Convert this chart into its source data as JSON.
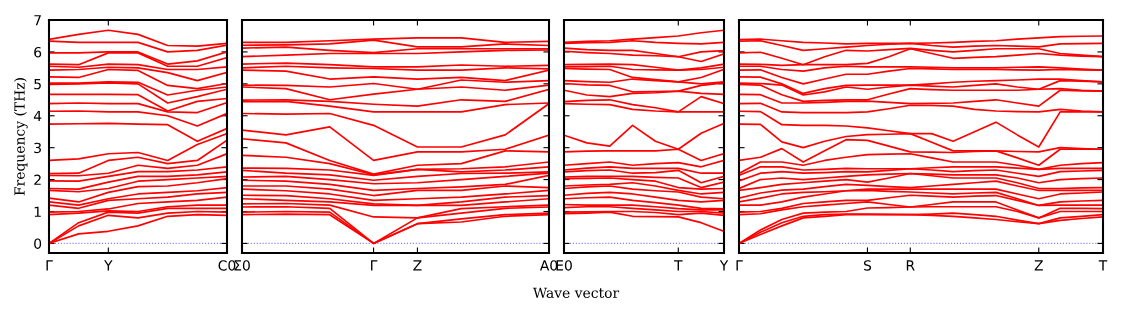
{
  "chart_data": [
    {
      "type": "line",
      "ylabel": "Frequency (THz)",
      "categories": [
        "Γ",
        null,
        "Y",
        null,
        null,
        null,
        "C0"
      ],
      "ylim": [
        -0.3,
        7
      ],
      "yticks": [
        0,
        1,
        2,
        3,
        4,
        5,
        6,
        7
      ],
      "marker": "none",
      "line_style": "solid",
      "ref_lines": [
        {
          "axis": "y",
          "value": 0,
          "color": "#8080ff",
          "line_style": "dotted"
        }
      ],
      "series": [
        {
          "color": "#ff0000",
          "values": [
            0,
            0.3,
            0.38,
            0.55,
            0.85,
            0.9,
            0.88
          ]
        },
        {
          "color": "#ff0000",
          "values": [
            0,
            0.55,
            0.88,
            0.8,
            0.95,
            1.0,
            0.98
          ]
        },
        {
          "color": "#ff0000",
          "values": [
            0,
            0.65,
            0.98,
            0.95,
            1.1,
            1.1,
            1.1
          ]
        },
        {
          "color": "#ff0000",
          "values": [
            0.9,
            0.95,
            1.02,
            1.0,
            1.15,
            1.2,
            1.2
          ]
        },
        {
          "color": "#ff0000",
          "values": [
            0.98,
            1.0,
            1.08,
            1.25,
            1.3,
            1.35,
            1.45
          ]
        },
        {
          "color": "#ff0000",
          "values": [
            1.2,
            1.1,
            1.35,
            1.4,
            1.45,
            1.55,
            1.6
          ]
        },
        {
          "color": "#ff0000",
          "values": [
            1.3,
            1.2,
            1.4,
            1.55,
            1.6,
            1.65,
            1.75
          ]
        },
        {
          "color": "#ff0000",
          "values": [
            1.42,
            1.3,
            1.6,
            1.78,
            1.8,
            1.9,
            2.03
          ]
        },
        {
          "color": "#ff0000",
          "values": [
            1.66,
            1.62,
            1.72,
            1.95,
            2.0,
            2.05,
            2.1
          ]
        },
        {
          "color": "#ff0000",
          "values": [
            1.72,
            1.7,
            1.92,
            2.1,
            2.1,
            2.15,
            2.24
          ]
        },
        {
          "color": "#ff0000",
          "values": [
            1.96,
            1.95,
            2.1,
            2.25,
            2.25,
            2.3,
            2.4
          ]
        },
        {
          "color": "#ff0000",
          "values": [
            2.13,
            2.12,
            2.2,
            2.45,
            2.35,
            2.45,
            2.81
          ]
        },
        {
          "color": "#ff0000",
          "values": [
            2.19,
            2.2,
            2.6,
            2.7,
            2.5,
            2.6,
            3.23
          ]
        },
        {
          "color": "#ff0000",
          "values": [
            2.6,
            2.65,
            2.81,
            2.85,
            2.6,
            3.1,
            3.44
          ]
        },
        {
          "color": "#ff0000",
          "values": [
            3.74,
            3.75,
            3.76,
            3.74,
            3.72,
            3.2,
            3.6
          ]
        },
        {
          "color": "#ff0000",
          "values": [
            4.14,
            4.15,
            4.12,
            4.12,
            4.0,
            3.68,
            4.07
          ]
        },
        {
          "color": "#ff0000",
          "values": [
            4.38,
            4.4,
            4.38,
            4.38,
            4.12,
            4.1,
            4.41
          ]
        },
        {
          "color": "#ff0000",
          "values": [
            4.67,
            4.67,
            4.67,
            4.66,
            4.15,
            4.45,
            4.54
          ]
        },
        {
          "color": "#ff0000",
          "values": [
            4.98,
            5.0,
            5.03,
            5.0,
            4.4,
            4.6,
            4.83
          ]
        },
        {
          "color": "#ff0000",
          "values": [
            5.02,
            5.02,
            5.06,
            5.05,
            4.65,
            4.8,
            4.9
          ]
        },
        {
          "color": "#ff0000",
          "values": [
            5.22,
            5.2,
            5.45,
            5.42,
            4.95,
            4.85,
            5.01
          ]
        },
        {
          "color": "#ff0000",
          "values": [
            5.43,
            5.45,
            5.52,
            5.5,
            5.35,
            5.1,
            5.36
          ]
        },
        {
          "color": "#ff0000",
          "values": [
            5.55,
            5.52,
            5.62,
            5.6,
            5.45,
            5.45,
            5.53
          ]
        },
        {
          "color": "#ff0000",
          "values": [
            5.62,
            5.6,
            5.97,
            5.97,
            5.55,
            5.55,
            5.82
          ]
        },
        {
          "color": "#ff0000",
          "values": [
            5.97,
            5.97,
            6.0,
            6.0,
            5.62,
            5.72,
            6.0
          ]
        },
        {
          "color": "#ff0000",
          "values": [
            6.34,
            6.3,
            6.3,
            6.3,
            6.0,
            6.05,
            6.21
          ]
        },
        {
          "color": "#ff0000",
          "values": [
            6.39,
            6.55,
            6.68,
            6.55,
            6.2,
            6.18,
            6.27
          ]
        }
      ]
    },
    {
      "type": "line",
      "categories": [
        "Σ0",
        null,
        null,
        "Γ",
        "Z",
        null,
        null,
        "A0"
      ],
      "ylim": [
        -0.3,
        7
      ],
      "yticks": [
        {
          "value": 0,
          "label": null
        },
        {
          "value": 1,
          "label": null
        },
        {
          "value": 2,
          "label": null
        },
        {
          "value": 3,
          "label": null
        },
        {
          "value": 4,
          "label": null
        },
        {
          "value": 5,
          "label": null
        },
        {
          "value": 6,
          "label": null
        },
        {
          "value": 7,
          "label": null
        }
      ],
      "tick_labels": "x",
      "marker": "none",
      "line_style": "solid",
      "ref_lines": [
        {
          "axis": "y",
          "value": 0,
          "color": "#8080ff",
          "line_style": "dotted"
        }
      ],
      "series": [
        {
          "color": "#ff0000",
          "values": [
            0.9,
            0.92,
            0.9,
            0,
            0.62,
            0.67,
            0.85,
            0.9
          ]
        },
        {
          "color": "#ff0000",
          "values": [
            0.98,
            1.0,
            0.98,
            0,
            0.62,
            0.77,
            0.9,
            0.95
          ]
        },
        {
          "color": "#ff0000",
          "values": [
            1.14,
            1.15,
            1.1,
            0,
            0.8,
            0.95,
            1.1,
            1.14
          ]
        },
        {
          "color": "#ff0000",
          "values": [
            1.24,
            1.25,
            1.2,
            0.83,
            0.8,
            1.09,
            1.15,
            1.2
          ]
        },
        {
          "color": "#ff0000",
          "values": [
            1.4,
            1.35,
            1.3,
            1.19,
            1.19,
            1.19,
            1.3,
            1.4
          ]
        },
        {
          "color": "#ff0000",
          "values": [
            1.51,
            1.5,
            1.4,
            1.24,
            1.19,
            1.3,
            1.45,
            1.5
          ]
        },
        {
          "color": "#ff0000",
          "values": [
            1.7,
            1.65,
            1.55,
            1.35,
            1.4,
            1.45,
            1.55,
            1.66
          ]
        },
        {
          "color": "#ff0000",
          "values": [
            1.8,
            1.8,
            1.7,
            1.5,
            1.66,
            1.66,
            1.8,
            1.75
          ]
        },
        {
          "color": "#ff0000",
          "values": [
            1.98,
            1.95,
            1.85,
            1.66,
            1.72,
            1.77,
            1.85,
            2.13
          ]
        },
        {
          "color": "#ff0000",
          "values": [
            2.08,
            2.1,
            2.0,
            1.87,
            1.9,
            2.0,
            2.1,
            2.2
          ]
        },
        {
          "color": "#ff0000",
          "values": [
            2.29,
            2.2,
            2.15,
            1.98,
            2.1,
            2.19,
            2.2,
            2.24
          ]
        },
        {
          "color": "#ff0000",
          "values": [
            2.36,
            2.35,
            2.3,
            2.13,
            2.32,
            2.24,
            2.3,
            2.4
          ]
        },
        {
          "color": "#ff0000",
          "values": [
            2.76,
            2.7,
            2.5,
            2.15,
            2.32,
            2.34,
            2.4,
            2.55
          ]
        },
        {
          "color": "#ff0000",
          "values": [
            3.28,
            3.15,
            2.6,
            2.17,
            2.45,
            2.5,
            2.9,
            2.87
          ]
        },
        {
          "color": "#ff0000",
          "values": [
            3.55,
            3.4,
            3.65,
            2.6,
            2.87,
            2.87,
            2.95,
            3.39
          ]
        },
        {
          "color": "#ff0000",
          "values": [
            4.07,
            4.05,
            4.07,
            3.7,
            3.02,
            3.02,
            3.4,
            4.38
          ]
        },
        {
          "color": "#ff0000",
          "values": [
            4.44,
            4.45,
            4.3,
            4.12,
            4.12,
            4.12,
            4.35,
            4.4
          ]
        },
        {
          "color": "#ff0000",
          "values": [
            4.49,
            4.5,
            4.45,
            4.36,
            4.3,
            4.5,
            4.45,
            4.83
          ]
        },
        {
          "color": "#ff0000",
          "values": [
            4.9,
            4.85,
            4.5,
            4.68,
            4.83,
            4.9,
            4.8,
            4.96
          ]
        },
        {
          "color": "#ff0000",
          "values": [
            4.96,
            4.95,
            4.9,
            5.01,
            4.83,
            5.12,
            5.05,
            5.1
          ]
        },
        {
          "color": "#ff0000",
          "values": [
            5.43,
            5.4,
            5.15,
            5.22,
            5.15,
            5.2,
            5.1,
            5.43
          ]
        },
        {
          "color": "#ff0000",
          "values": [
            5.5,
            5.55,
            5.5,
            5.48,
            5.43,
            5.43,
            5.5,
            5.47
          ]
        },
        {
          "color": "#ff0000",
          "values": [
            5.62,
            5.65,
            5.6,
            5.53,
            5.53,
            5.59,
            5.55,
            5.58
          ]
        },
        {
          "color": "#ff0000",
          "values": [
            5.85,
            5.9,
            5.95,
            5.95,
            5.95,
            6.0,
            6.05,
            6.06
          ]
        },
        {
          "color": "#ff0000",
          "values": [
            6.12,
            6.15,
            6.05,
            5.98,
            6.1,
            6.1,
            6.1,
            6.1
          ]
        },
        {
          "color": "#ff0000",
          "values": [
            6.21,
            6.22,
            6.25,
            6.37,
            6.16,
            6.16,
            6.25,
            6.2
          ]
        },
        {
          "color": "#ff0000",
          "values": [
            6.3,
            6.3,
            6.35,
            6.4,
            6.44,
            6.44,
            6.3,
            6.33
          ]
        }
      ]
    },
    {
      "type": "line",
      "xlabel": "Wave vector",
      "categories": [
        "E0",
        null,
        null,
        null,
        null,
        "T",
        null,
        "Y"
      ],
      "ylim": [
        -0.3,
        7
      ],
      "yticks": [
        {
          "value": 0,
          "label": null
        },
        {
          "value": 1,
          "label": null
        },
        {
          "value": 2,
          "label": null
        },
        {
          "value": 3,
          "label": null
        },
        {
          "value": 4,
          "label": null
        },
        {
          "value": 5,
          "label": null
        },
        {
          "value": 6,
          "label": null
        },
        {
          "value": 7,
          "label": null
        }
      ],
      "tick_labels": "x",
      "marker": "none",
      "line_style": "solid",
      "ref_lines": [
        {
          "axis": "y",
          "value": 0,
          "color": "#8080ff",
          "line_style": "dotted"
        }
      ],
      "series": [
        {
          "color": "#ff0000",
          "values": [
            0.93,
            0.95,
            0.98,
            0.85,
            0.84,
            0.83,
            0.65,
            0.38
          ]
        },
        {
          "color": "#ff0000",
          "values": [
            0.98,
            0.99,
            1.0,
            1.0,
            0.97,
            0.9,
            0.95,
            0.88
          ]
        },
        {
          "color": "#ff0000",
          "values": [
            1.12,
            1.15,
            1.15,
            1.1,
            1.05,
            1.0,
            1.0,
            0.95
          ]
        },
        {
          "color": "#ff0000",
          "values": [
            1.22,
            1.2,
            1.2,
            1.2,
            1.15,
            1.09,
            1.05,
            1.05
          ]
        },
        {
          "color": "#ff0000",
          "values": [
            1.4,
            1.43,
            1.45,
            1.35,
            1.28,
            1.2,
            1.1,
            1.08
          ]
        },
        {
          "color": "#ff0000",
          "values": [
            1.51,
            1.57,
            1.6,
            1.55,
            1.45,
            1.35,
            1.3,
            1.35
          ]
        },
        {
          "color": "#ff0000",
          "values": [
            1.72,
            1.77,
            1.8,
            1.7,
            1.65,
            1.61,
            1.45,
            1.4
          ]
        },
        {
          "color": "#ff0000",
          "values": [
            1.8,
            1.83,
            1.85,
            1.9,
            1.8,
            1.66,
            1.55,
            1.6
          ]
        },
        {
          "color": "#ff0000",
          "values": [
            2.03,
            2.04,
            2.05,
            2.0,
            1.95,
            1.75,
            1.7,
            1.72
          ]
        },
        {
          "color": "#ff0000",
          "values": [
            2.08,
            2.1,
            2.1,
            2.1,
            2.07,
            2.05,
            1.75,
            1.92
          ]
        },
        {
          "color": "#ff0000",
          "values": [
            2.24,
            2.28,
            2.3,
            2.2,
            2.22,
            2.29,
            1.9,
            2.1
          ]
        },
        {
          "color": "#ff0000",
          "values": [
            2.3,
            2.36,
            2.4,
            2.35,
            2.35,
            2.35,
            2.2,
            2.2
          ]
        },
        {
          "color": "#ff0000",
          "values": [
            2.45,
            2.5,
            2.55,
            2.45,
            2.5,
            2.53,
            2.4,
            2.6
          ]
        },
        {
          "color": "#ff0000",
          "values": [
            2.87,
            2.89,
            2.9,
            2.9,
            2.9,
            2.95,
            2.6,
            2.81
          ]
        },
        {
          "color": "#ff0000",
          "values": [
            3.39,
            3.15,
            3.05,
            3.7,
            3.2,
            2.95,
            3.45,
            3.76
          ]
        },
        {
          "color": "#ff0000",
          "values": [
            4.38,
            4.36,
            4.35,
            4.2,
            4.15,
            4.12,
            4.12,
            4.12
          ]
        },
        {
          "color": "#ff0000",
          "values": [
            4.44,
            4.48,
            4.5,
            4.35,
            4.25,
            4.12,
            4.6,
            4.38
          ]
        },
        {
          "color": "#ff0000",
          "values": [
            4.8,
            4.65,
            4.6,
            4.7,
            4.72,
            4.77,
            4.7,
            4.67
          ]
        },
        {
          "color": "#ff0000",
          "values": [
            5.01,
            4.97,
            4.95,
            4.75,
            4.76,
            4.77,
            4.95,
            5.03
          ]
        },
        {
          "color": "#ff0000",
          "values": [
            5.1,
            5.07,
            5.05,
            5.15,
            5.1,
            5.06,
            5.0,
            5.06
          ]
        },
        {
          "color": "#ff0000",
          "values": [
            5.48,
            5.46,
            5.45,
            5.2,
            5.13,
            5.06,
            5.2,
            5.45
          ]
        },
        {
          "color": "#ff0000",
          "values": [
            5.53,
            5.54,
            5.55,
            5.45,
            5.44,
            5.43,
            5.45,
            5.52
          ]
        },
        {
          "color": "#ff0000",
          "values": [
            5.6,
            5.61,
            5.62,
            5.6,
            5.52,
            5.43,
            5.5,
            5.62
          ]
        },
        {
          "color": "#ff0000",
          "values": [
            6.02,
            5.98,
            5.95,
            5.9,
            5.88,
            5.85,
            5.7,
            5.94
          ]
        },
        {
          "color": "#ff0000",
          "values": [
            6.12,
            6.07,
            6.05,
            6.05,
            5.95,
            5.85,
            6.0,
            6.04
          ]
        },
        {
          "color": "#ff0000",
          "values": [
            6.27,
            6.29,
            6.3,
            6.35,
            6.3,
            6.27,
            6.25,
            6.3
          ]
        },
        {
          "color": "#ff0000",
          "values": [
            6.3,
            6.33,
            6.35,
            6.4,
            6.45,
            6.5,
            6.6,
            6.68
          ]
        }
      ]
    },
    {
      "type": "line",
      "categories": [
        "Γ",
        null,
        null,
        null,
        null,
        null,
        "S",
        null,
        "R",
        null,
        null,
        null,
        null,
        null,
        "Z",
        null,
        null,
        "T"
      ],
      "ylim": [
        -0.3,
        7
      ],
      "yticks": [
        {
          "value": 0,
          "label": null
        },
        {
          "value": 1,
          "label": null
        },
        {
          "value": 2,
          "label": null
        },
        {
          "value": 3,
          "label": null
        },
        {
          "value": 4,
          "label": null
        },
        {
          "value": 5,
          "label": null
        },
        {
          "value": 6,
          "label": null
        },
        {
          "value": 7,
          "label": null
        }
      ],
      "tick_labels": "x",
      "marker": "none",
      "line_style": "solid",
      "ref_lines": [
        {
          "axis": "y",
          "value": 0,
          "color": "#8080ff",
          "line_style": "dotted"
        }
      ],
      "series": [
        {
          "color": "#ff0000",
          "values": [
            0,
            0.28,
            0.55,
            0.8,
            0.85,
            0.9,
            0.9,
            0.9,
            0.9,
            0.88,
            0.85,
            0.8,
            0.75,
            0.68,
            0.62,
            0.72,
            0.78,
            0.83
          ]
        },
        {
          "color": "#ff0000",
          "values": [
            0,
            0.35,
            0.65,
            0.85,
            0.9,
            0.92,
            0.92,
            0.91,
            0.9,
            0.92,
            0.95,
            0.9,
            0.85,
            0.73,
            0.62,
            0.8,
            0.85,
            0.9
          ]
        },
        {
          "color": "#ff0000",
          "values": [
            0,
            0.42,
            0.75,
            0.95,
            0.98,
            1.0,
            1.11,
            1.12,
            1.14,
            1.15,
            1.15,
            1.15,
            1.15,
            1.0,
            0.8,
            1.0,
            1.0,
            1.0
          ]
        },
        {
          "color": "#ff0000",
          "values": [
            0.9,
            0.93,
            1.05,
            1.15,
            1.2,
            1.25,
            1.3,
            1.22,
            1.14,
            1.22,
            1.3,
            1.3,
            1.3,
            1.05,
            0.8,
            1.1,
            1.1,
            1.09
          ]
        },
        {
          "color": "#ff0000",
          "values": [
            0.98,
            1.0,
            1.1,
            1.25,
            1.3,
            1.35,
            1.35,
            1.43,
            1.51,
            1.48,
            1.45,
            1.48,
            1.5,
            1.35,
            1.19,
            1.2,
            1.2,
            1.2
          ]
        },
        {
          "color": "#ff0000",
          "values": [
            1.2,
            1.2,
            1.3,
            1.45,
            1.55,
            1.65,
            1.66,
            1.63,
            1.61,
            1.58,
            1.55,
            1.58,
            1.6,
            1.4,
            1.19,
            1.3,
            1.33,
            1.35
          ]
        },
        {
          "color": "#ff0000",
          "values": [
            1.3,
            1.42,
            1.55,
            1.6,
            1.62,
            1.65,
            1.7,
            1.7,
            1.7,
            1.7,
            1.7,
            1.7,
            1.7,
            1.55,
            1.4,
            1.55,
            1.58,
            1.61
          ]
        },
        {
          "color": "#ff0000",
          "values": [
            1.42,
            1.58,
            1.67,
            1.7,
            1.78,
            1.85,
            1.82,
            1.78,
            1.75,
            1.8,
            1.85,
            1.9,
            1.95,
            1.8,
            1.66,
            1.66,
            1.66,
            1.66
          ]
        },
        {
          "color": "#ff0000",
          "values": [
            1.66,
            1.75,
            1.85,
            1.9,
            1.95,
            2.0,
            1.92,
            2.05,
            2.19,
            2.12,
            2.05,
            2.05,
            2.05,
            1.9,
            1.72,
            1.72,
            1.74,
            1.75
          ]
        },
        {
          "color": "#ff0000",
          "values": [
            1.72,
            2.0,
            2.05,
            2.0,
            2.05,
            2.1,
            2.15,
            2.17,
            2.19,
            2.17,
            2.15,
            2.15,
            2.15,
            2.05,
            1.9,
            2.0,
            2.03,
            2.05
          ]
        },
        {
          "color": "#ff0000",
          "values": [
            1.96,
            2.2,
            2.25,
            2.2,
            2.22,
            2.25,
            2.24,
            2.29,
            2.34,
            2.3,
            2.25,
            2.28,
            2.3,
            2.2,
            2.1,
            2.25,
            2.27,
            2.29
          ]
        },
        {
          "color": "#ff0000",
          "values": [
            2.13,
            2.4,
            2.4,
            2.3,
            2.32,
            2.35,
            2.34,
            2.34,
            2.34,
            2.37,
            2.4,
            2.4,
            2.4,
            2.36,
            2.32,
            2.35,
            2.35,
            2.35
          ]
        },
        {
          "color": "#ff0000",
          "values": [
            2.19,
            2.55,
            2.55,
            2.45,
            2.6,
            2.7,
            2.78,
            2.8,
            2.81,
            2.68,
            2.55,
            2.55,
            2.55,
            2.45,
            2.32,
            2.45,
            2.5,
            2.53
          ]
        },
        {
          "color": "#ff0000",
          "values": [
            2.6,
            2.7,
            2.97,
            2.55,
            2.9,
            3.25,
            3.23,
            3.05,
            2.87,
            2.86,
            2.85,
            2.88,
            2.9,
            2.68,
            2.45,
            2.95,
            2.95,
            2.95
          ]
        },
        {
          "color": "#ff0000",
          "values": [
            3.74,
            3.73,
            3.18,
            3.0,
            3.2,
            3.35,
            3.41,
            3.42,
            3.44,
            3.17,
            2.9,
            2.9,
            2.9,
            2.88,
            2.87,
            3.0,
            2.97,
            2.95
          ]
        },
        {
          "color": "#ff0000",
          "values": [
            4.14,
            4.13,
            3.72,
            3.7,
            3.7,
            3.68,
            3.62,
            3.53,
            3.44,
            3.44,
            3.2,
            3.5,
            3.8,
            3.4,
            3.02,
            4.12,
            4.12,
            4.12
          ]
        },
        {
          "color": "#ff0000",
          "values": [
            4.38,
            4.39,
            4.12,
            4.1,
            4.1,
            4.1,
            4.12,
            4.22,
            4.33,
            4.32,
            4.3,
            4.2,
            4.15,
            4.13,
            4.12,
            4.2,
            4.15,
            4.12
          ]
        },
        {
          "color": "#ff0000",
          "values": [
            4.67,
            4.66,
            4.4,
            4.4,
            4.42,
            4.45,
            4.46,
            4.42,
            4.38,
            4.39,
            4.4,
            4.45,
            4.5,
            4.4,
            4.3,
            4.8,
            4.78,
            4.77
          ]
        },
        {
          "color": "#ff0000",
          "values": [
            4.98,
            4.96,
            4.66,
            4.45,
            4.48,
            4.5,
            4.5,
            4.68,
            4.85,
            4.82,
            4.8,
            4.8,
            4.8,
            4.8,
            4.83,
            4.85,
            4.8,
            4.77
          ]
        },
        {
          "color": "#ff0000",
          "values": [
            5.02,
            5.01,
            4.96,
            4.65,
            4.75,
            4.9,
            4.83,
            4.9,
            4.96,
            4.93,
            4.9,
            4.95,
            5.0,
            4.9,
            4.83,
            5.1,
            5.08,
            5.06
          ]
        },
        {
          "color": "#ff0000",
          "values": [
            5.22,
            5.21,
            5.0,
            4.7,
            4.85,
            4.95,
            4.96,
            4.96,
            4.96,
            5.0,
            5.05,
            5.08,
            5.1,
            5.12,
            5.15,
            5.15,
            5.1,
            5.06
          ]
        },
        {
          "color": "#ff0000",
          "values": [
            5.43,
            5.44,
            5.2,
            5.0,
            5.15,
            5.3,
            5.3,
            5.4,
            5.48,
            5.47,
            5.45,
            5.45,
            5.45,
            5.44,
            5.43,
            5.45,
            5.44,
            5.43
          ]
        },
        {
          "color": "#ff0000",
          "values": [
            5.55,
            5.55,
            5.45,
            5.4,
            5.5,
            5.55,
            5.53,
            5.53,
            5.53,
            5.52,
            5.5,
            5.5,
            5.5,
            5.52,
            5.53,
            5.5,
            5.46,
            5.43
          ]
        },
        {
          "color": "#ff0000",
          "values": [
            5.62,
            5.61,
            5.58,
            5.6,
            5.6,
            5.6,
            5.64,
            5.85,
            6.1,
            5.95,
            5.8,
            5.83,
            5.85,
            5.9,
            5.95,
            5.9,
            5.87,
            5.85
          ]
        },
        {
          "color": "#ff0000",
          "values": [
            5.97,
            5.99,
            5.8,
            5.6,
            5.85,
            6.05,
            6.03,
            6.07,
            6.11,
            6.05,
            6.0,
            6.05,
            6.1,
            6.1,
            6.1,
            5.95,
            5.9,
            5.85
          ]
        },
        {
          "color": "#ff0000",
          "values": [
            6.34,
            6.35,
            6.2,
            6.05,
            6.1,
            6.15,
            6.2,
            6.24,
            6.27,
            6.2,
            6.15,
            6.18,
            6.2,
            6.18,
            6.16,
            6.25,
            6.26,
            6.27
          ]
        },
        {
          "color": "#ff0000",
          "values": [
            6.39,
            6.4,
            6.35,
            6.3,
            6.28,
            6.25,
            6.27,
            6.27,
            6.27,
            6.28,
            6.3,
            6.33,
            6.35,
            6.4,
            6.44,
            6.48,
            6.49,
            6.5
          ]
        }
      ]
    }
  ]
}
